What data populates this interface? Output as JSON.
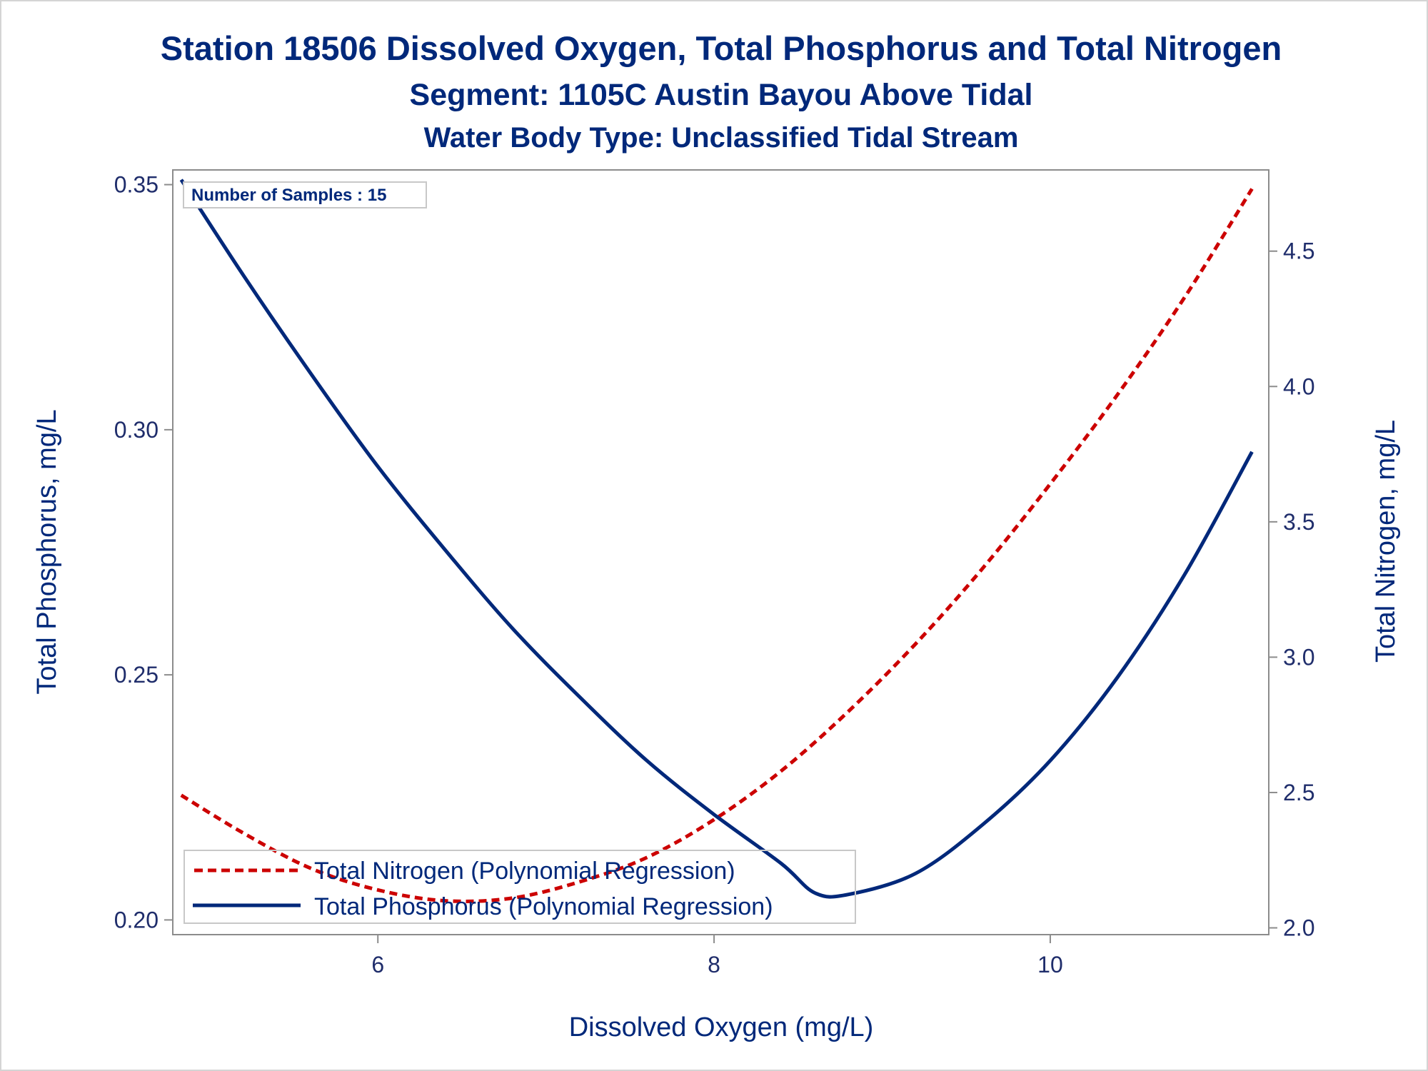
{
  "chart_data": {
    "type": "line",
    "title": "Station 18506  Dissolved Oxygen, Total Phosphorus and Total Nitrogen",
    "subtitle": "Segment: 1105C  Austin Bayou Above Tidal",
    "subtitle2": "Water Body Type: Unclassified Tidal Stream",
    "xlabel": "Dissolved Oxygen (mg/L)",
    "ylabel_left": "Total Phosphorus, mg/L",
    "ylabel_right": "Total Nitrogen, mg/L",
    "xlim": [
      4.78,
      11.3
    ],
    "ylim_left": [
      0.197,
      0.353
    ],
    "ylim_right": [
      1.975,
      4.8
    ],
    "x_ticks": [
      "6",
      "8",
      "10"
    ],
    "y_left_ticks": [
      "0.20",
      "0.25",
      "0.30",
      "0.35"
    ],
    "y_right_ticks": [
      "2.0",
      "2.5",
      "3.0",
      "3.5",
      "4.0",
      "4.5"
    ],
    "annotation": "Number of Samples : 15",
    "legend_position": "bottom-left",
    "colors": {
      "text": "#00287a",
      "phosphorus": "#00287a",
      "nitrogen": "#cc0000",
      "frame": "#8c8c8c"
    },
    "series": [
      {
        "name": "Total Nitrogen (Polynomial Regression)",
        "axis": "right",
        "style": "dashed",
        "color": "#cc0000",
        "x": [
          4.83,
          5.2,
          5.6,
          6.0,
          6.4,
          6.8,
          7.2,
          7.6,
          8.0,
          8.4,
          8.8,
          9.2,
          9.6,
          10.0,
          10.4,
          10.8,
          11.2
        ],
        "values": [
          2.49,
          2.35,
          2.22,
          2.14,
          2.1,
          2.11,
          2.17,
          2.26,
          2.4,
          2.58,
          2.8,
          3.05,
          3.33,
          3.64,
          3.97,
          4.33,
          4.73
        ]
      },
      {
        "name": "Total Phosphorus (Polynomial Regression)",
        "axis": "left",
        "style": "solid",
        "color": "#00287a",
        "x": [
          4.83,
          5.2,
          5.6,
          6.0,
          6.4,
          6.8,
          7.2,
          7.6,
          8.0,
          8.4,
          8.6,
          8.8,
          9.2,
          9.6,
          10.0,
          10.4,
          10.8,
          11.2
        ],
        "values": [
          0.351,
          0.3315,
          0.3115,
          0.2925,
          0.2755,
          0.2595,
          0.2455,
          0.2325,
          0.2215,
          0.2115,
          0.2055,
          0.2052,
          0.2095,
          0.2195,
          0.2325,
          0.2495,
          0.2705,
          0.2955
        ]
      }
    ]
  }
}
